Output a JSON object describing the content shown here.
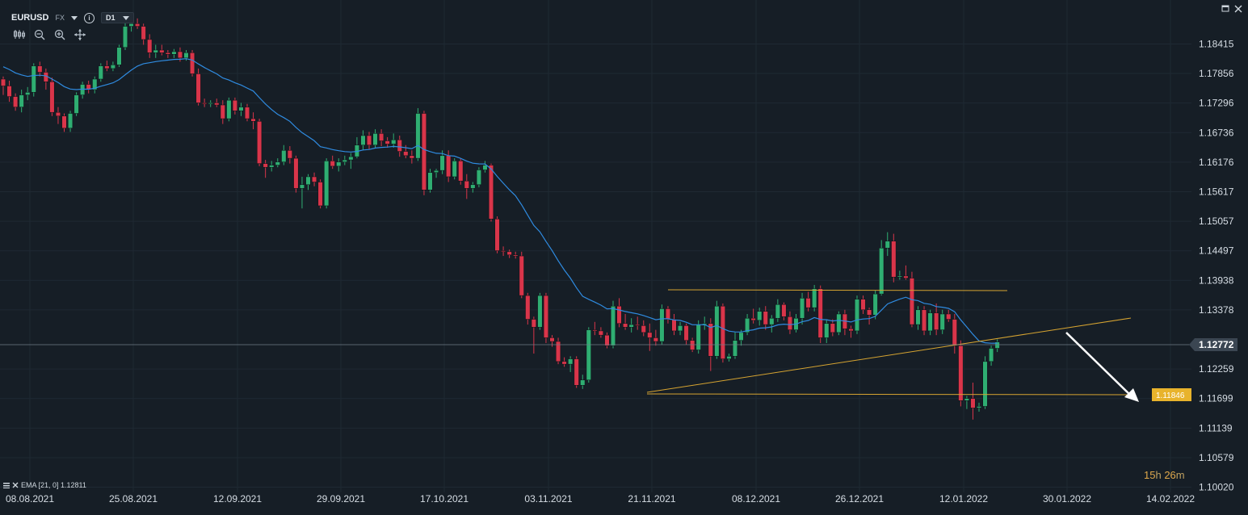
{
  "header": {
    "symbol": "EURUSD",
    "market": "FX",
    "info": "i",
    "timeframe": "D1"
  },
  "tools": [
    "candle-style-icon",
    "zoom-out-icon",
    "zoom-in-icon",
    "crosshair-move-icon"
  ],
  "window_controls": [
    "restore-icon",
    "close-icon"
  ],
  "indicator_legend": "EMA [21, 0] 1.12811",
  "price_axis": {
    "labels": [
      "1.18415",
      "1.17856",
      "1.17296",
      "1.16736",
      "1.16176",
      "1.15617",
      "1.15057",
      "1.14497",
      "1.13938",
      "1.13378",
      "1.12259",
      "1.11699",
      "1.11139",
      "1.10579",
      "1.10020"
    ],
    "current_price": "1.12772",
    "target_price": "1.11846"
  },
  "time_axis": {
    "labels": [
      "08.08.2021",
      "25.08.2021",
      "12.09.2021",
      "29.09.2021",
      "17.10.2021",
      "03.11.2021",
      "21.11.2021",
      "08.12.2021",
      "26.12.2021",
      "12.01.2022",
      "30.01.2022",
      "14.02.2022"
    ]
  },
  "countdown": {
    "hours": "15",
    "h_unit": "h",
    "minutes": "26",
    "m_unit": "m"
  },
  "colors": {
    "background": "#161e26",
    "bull": "#2fae72",
    "bear": "#d9354a",
    "ema": "#2f8be0",
    "trendline": "#d6a431",
    "arrow": "#ffffff",
    "price_tag": "#3b4652",
    "target_tag": "#e8b32c"
  },
  "chart_data": {
    "type": "candlestick",
    "title": "EURUSD D1",
    "yaxis_range": [
      1.0975,
      1.189
    ],
    "indicator": {
      "name": "EMA",
      "period": 21,
      "value": 1.12811
    },
    "ohlc": [
      [
        1.1775,
        1.178,
        1.1745,
        1.1762
      ],
      [
        1.1762,
        1.1772,
        1.1732,
        1.1742
      ],
      [
        1.1742,
        1.1748,
        1.1715,
        1.1722
      ],
      [
        1.1722,
        1.1755,
        1.1712,
        1.1745
      ],
      [
        1.1745,
        1.176,
        1.1735,
        1.175
      ],
      [
        1.175,
        1.1805,
        1.1742,
        1.18
      ],
      [
        1.18,
        1.1808,
        1.178,
        1.1788
      ],
      [
        1.1788,
        1.1795,
        1.1755,
        1.177
      ],
      [
        1.177,
        1.1778,
        1.1705,
        1.1712
      ],
      [
        1.1712,
        1.1722,
        1.169,
        1.1705
      ],
      [
        1.1705,
        1.171,
        1.1675,
        1.1682
      ],
      [
        1.1682,
        1.1715,
        1.1675,
        1.171
      ],
      [
        1.171,
        1.175,
        1.1705,
        1.1745
      ],
      [
        1.1745,
        1.177,
        1.1738,
        1.1765
      ],
      [
        1.1765,
        1.1772,
        1.1748,
        1.1755
      ],
      [
        1.1755,
        1.178,
        1.1748,
        1.1775
      ],
      [
        1.1775,
        1.1805,
        1.177,
        1.18
      ],
      [
        1.18,
        1.181,
        1.179,
        1.1795
      ],
      [
        1.1795,
        1.1808,
        1.179,
        1.1802
      ],
      [
        1.1802,
        1.184,
        1.1798,
        1.1835
      ],
      [
        1.1835,
        1.1885,
        1.183,
        1.1875
      ],
      [
        1.1875,
        1.1895,
        1.1865,
        1.188
      ],
      [
        1.188,
        1.189,
        1.187,
        1.1875
      ],
      [
        1.1875,
        1.188,
        1.184,
        1.185
      ],
      [
        1.185,
        1.186,
        1.1815,
        1.1825
      ],
      [
        1.1825,
        1.184,
        1.1815,
        1.183
      ],
      [
        1.183,
        1.184,
        1.182,
        1.1825
      ],
      [
        1.1825,
        1.183,
        1.1815,
        1.1822
      ],
      [
        1.1822,
        1.1832,
        1.1815,
        1.1827
      ],
      [
        1.1827,
        1.1835,
        1.1808,
        1.1815
      ],
      [
        1.1815,
        1.183,
        1.181,
        1.1825
      ],
      [
        1.1825,
        1.183,
        1.178,
        1.1785
      ],
      [
        1.1785,
        1.1795,
        1.1725,
        1.173
      ],
      [
        1.173,
        1.1738,
        1.1722,
        1.1728
      ],
      [
        1.1728,
        1.1735,
        1.1722,
        1.173
      ],
      [
        1.173,
        1.1738,
        1.1722,
        1.1726
      ],
      [
        1.1726,
        1.1735,
        1.169,
        1.17
      ],
      [
        1.17,
        1.174,
        1.1695,
        1.1735
      ],
      [
        1.1735,
        1.174,
        1.1708,
        1.1715
      ],
      [
        1.1715,
        1.173,
        1.1705,
        1.1722
      ],
      [
        1.1722,
        1.1728,
        1.1695,
        1.17
      ],
      [
        1.17,
        1.1712,
        1.168,
        1.1695
      ],
      [
        1.1695,
        1.17,
        1.161,
        1.1615
      ],
      [
        1.1615,
        1.1622,
        1.1588,
        1.1608
      ],
      [
        1.1608,
        1.162,
        1.16,
        1.1612
      ],
      [
        1.1612,
        1.1625,
        1.1608,
        1.1618
      ],
      [
        1.1618,
        1.165,
        1.1612,
        1.164
      ],
      [
        1.164,
        1.1648,
        1.1615,
        1.1625
      ],
      [
        1.1625,
        1.163,
        1.156,
        1.1568
      ],
      [
        1.1568,
        1.159,
        1.153,
        1.1575
      ],
      [
        1.1575,
        1.1595,
        1.1565,
        1.159
      ],
      [
        1.159,
        1.1598,
        1.1572,
        1.158
      ],
      [
        1.158,
        1.1585,
        1.153,
        1.1535
      ],
      [
        1.1535,
        1.1625,
        1.153,
        1.162
      ],
      [
        1.162,
        1.163,
        1.1605,
        1.161
      ],
      [
        1.161,
        1.1625,
        1.16,
        1.1618
      ],
      [
        1.1618,
        1.163,
        1.1612,
        1.1622
      ],
      [
        1.1622,
        1.1635,
        1.1605,
        1.1628
      ],
      [
        1.1628,
        1.1665,
        1.1625,
        1.165
      ],
      [
        1.165,
        1.1678,
        1.164,
        1.1668
      ],
      [
        1.1668,
        1.1675,
        1.1642,
        1.165
      ],
      [
        1.165,
        1.168,
        1.1645,
        1.1672
      ],
      [
        1.1672,
        1.168,
        1.1648,
        1.1658
      ],
      [
        1.1658,
        1.1665,
        1.1645,
        1.1652
      ],
      [
        1.1652,
        1.1672,
        1.1645,
        1.166
      ],
      [
        1.166,
        1.1668,
        1.1628,
        1.1638
      ],
      [
        1.1638,
        1.165,
        1.1625,
        1.163
      ],
      [
        1.163,
        1.164,
        1.1615,
        1.1625
      ],
      [
        1.1625,
        1.172,
        1.162,
        1.171
      ],
      [
        1.171,
        1.1715,
        1.1555,
        1.1565
      ],
      [
        1.1565,
        1.1605,
        1.156,
        1.1598
      ],
      [
        1.1598,
        1.1605,
        1.1588,
        1.1602
      ],
      [
        1.1602,
        1.164,
        1.1595,
        1.163
      ],
      [
        1.163,
        1.164,
        1.158,
        1.159
      ],
      [
        1.159,
        1.1625,
        1.1585,
        1.162
      ],
      [
        1.162,
        1.1625,
        1.1575,
        1.1582
      ],
      [
        1.1582,
        1.1595,
        1.1548,
        1.1568
      ],
      [
        1.1568,
        1.158,
        1.156,
        1.1575
      ],
      [
        1.1575,
        1.1608,
        1.157,
        1.1603
      ],
      [
        1.1603,
        1.162,
        1.1598,
        1.1612
      ],
      [
        1.1612,
        1.1615,
        1.1505,
        1.151
      ],
      [
        1.151,
        1.1515,
        1.1445,
        1.145
      ],
      [
        1.145,
        1.1458,
        1.144,
        1.1448
      ],
      [
        1.1448,
        1.1452,
        1.1436,
        1.1442
      ],
      [
        1.1442,
        1.1448,
        1.1435,
        1.144
      ],
      [
        1.144,
        1.1448,
        1.136,
        1.1365
      ],
      [
        1.1365,
        1.137,
        1.131,
        1.132
      ],
      [
        1.132,
        1.1325,
        1.1255,
        1.1305
      ],
      [
        1.1305,
        1.137,
        1.13,
        1.1365
      ],
      [
        1.1365,
        1.137,
        1.1275,
        1.1285
      ],
      [
        1.1285,
        1.129,
        1.1268,
        1.1278
      ],
      [
        1.1278,
        1.1285,
        1.1235,
        1.124
      ],
      [
        1.124,
        1.1248,
        1.123,
        1.1235
      ],
      [
        1.1235,
        1.125,
        1.122,
        1.1245
      ],
      [
        1.1245,
        1.125,
        1.119,
        1.1195
      ],
      [
        1.1195,
        1.1215,
        1.1188,
        1.1205
      ],
      [
        1.1205,
        1.1305,
        1.12,
        1.13
      ],
      [
        1.13,
        1.1315,
        1.129,
        1.1298
      ],
      [
        1.1298,
        1.1305,
        1.1285,
        1.129
      ],
      [
        1.129,
        1.1295,
        1.1265,
        1.127
      ],
      [
        1.127,
        1.1355,
        1.1265,
        1.1345
      ],
      [
        1.1345,
        1.136,
        1.1305,
        1.1312
      ],
      [
        1.1312,
        1.133,
        1.13,
        1.1305
      ],
      [
        1.1305,
        1.1322,
        1.1295,
        1.131
      ],
      [
        1.131,
        1.1325,
        1.13,
        1.1308
      ],
      [
        1.1308,
        1.1318,
        1.1288,
        1.1295
      ],
      [
        1.1295,
        1.1312,
        1.126,
        1.1285
      ],
      [
        1.1285,
        1.13,
        1.127,
        1.1278
      ],
      [
        1.1278,
        1.1348,
        1.1272,
        1.134
      ],
      [
        1.134,
        1.1345,
        1.1312,
        1.132
      ],
      [
        1.132,
        1.133,
        1.129,
        1.1298
      ],
      [
        1.1298,
        1.1315,
        1.129,
        1.1308
      ],
      [
        1.1308,
        1.1312,
        1.1272,
        1.128
      ],
      [
        1.128,
        1.1285,
        1.1258,
        1.1262
      ],
      [
        1.1262,
        1.1318,
        1.1255,
        1.131
      ],
      [
        1.131,
        1.1325,
        1.13,
        1.1312
      ],
      [
        1.1312,
        1.1322,
        1.1222,
        1.125
      ],
      [
        1.125,
        1.1355,
        1.1245,
        1.1345
      ],
      [
        1.1345,
        1.135,
        1.1238,
        1.1245
      ],
      [
        1.1245,
        1.1255,
        1.124,
        1.125
      ],
      [
        1.125,
        1.1295,
        1.1245,
        1.128
      ],
      [
        1.128,
        1.13,
        1.127,
        1.1295
      ],
      [
        1.1295,
        1.133,
        1.129,
        1.1322
      ],
      [
        1.1322,
        1.134,
        1.1312,
        1.1318
      ],
      [
        1.1318,
        1.1342,
        1.1308,
        1.1335
      ],
      [
        1.1335,
        1.1345,
        1.13,
        1.131
      ],
      [
        1.131,
        1.1328,
        1.1295,
        1.1322
      ],
      [
        1.1322,
        1.1358,
        1.1315,
        1.1348
      ],
      [
        1.1348,
        1.1352,
        1.1318,
        1.1325
      ],
      [
        1.1325,
        1.1335,
        1.1292,
        1.13
      ],
      [
        1.13,
        1.133,
        1.1295,
        1.1322
      ],
      [
        1.1322,
        1.137,
        1.131,
        1.136
      ],
      [
        1.136,
        1.1372,
        1.1335,
        1.1342
      ],
      [
        1.1342,
        1.1385,
        1.1335,
        1.1378
      ],
      [
        1.1378,
        1.1384,
        1.1275,
        1.1285
      ],
      [
        1.1285,
        1.132,
        1.1275,
        1.1312
      ],
      [
        1.1312,
        1.132,
        1.1288,
        1.1295
      ],
      [
        1.1295,
        1.1335,
        1.129,
        1.133
      ],
      [
        1.133,
        1.1338,
        1.129,
        1.1302
      ],
      [
        1.1302,
        1.1308,
        1.1285,
        1.1298
      ],
      [
        1.1298,
        1.1365,
        1.1292,
        1.1358
      ],
      [
        1.1358,
        1.1365,
        1.133,
        1.1338
      ],
      [
        1.1338,
        1.1342,
        1.131,
        1.1328
      ],
      [
        1.1328,
        1.1375,
        1.132,
        1.1368
      ],
      [
        1.1368,
        1.147,
        1.1365,
        1.1455
      ],
      [
        1.1455,
        1.1485,
        1.144,
        1.1468
      ],
      [
        1.1468,
        1.1482,
        1.139,
        1.14
      ],
      [
        1.14,
        1.1412,
        1.1395,
        1.1402
      ],
      [
        1.1402,
        1.1422,
        1.1395,
        1.1398
      ],
      [
        1.1398,
        1.141,
        1.1305,
        1.131
      ],
      [
        1.131,
        1.1345,
        1.13,
        1.1338
      ],
      [
        1.1338,
        1.1345,
        1.129,
        1.1298
      ],
      [
        1.1298,
        1.1338,
        1.129,
        1.1332
      ],
      [
        1.1332,
        1.135,
        1.129,
        1.13
      ],
      [
        1.13,
        1.1338,
        1.1292,
        1.133
      ],
      [
        1.133,
        1.1338,
        1.1315,
        1.132
      ],
      [
        1.132,
        1.133,
        1.1255,
        1.127
      ],
      [
        1.127,
        1.128,
        1.1155,
        1.1166
      ],
      [
        1.1166,
        1.1175,
        1.115,
        1.117
      ],
      [
        1.117,
        1.12,
        1.113,
        1.1152
      ],
      [
        1.1152,
        1.1162,
        1.1145,
        1.1155
      ],
      [
        1.1155,
        1.125,
        1.115,
        1.124
      ],
      [
        1.124,
        1.127,
        1.1232,
        1.1265
      ],
      [
        1.1265,
        1.1282,
        1.1258,
        1.1277
      ]
    ]
  }
}
